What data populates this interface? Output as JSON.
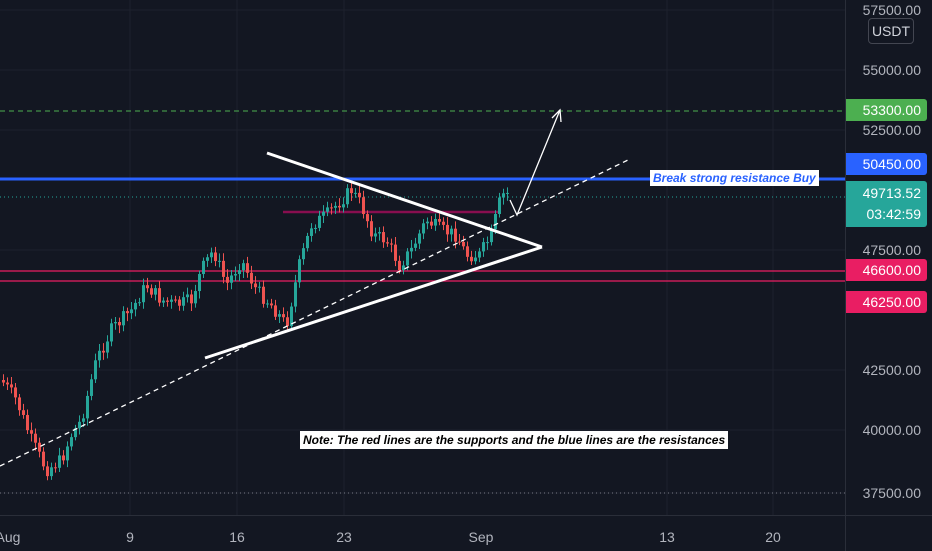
{
  "colors": {
    "background": "#131722",
    "up": "#26a69a",
    "down": "#ef5350",
    "resistance": "#2962ff",
    "support": "#e91e63",
    "target": "#4caf50",
    "current": "#26a69a"
  },
  "axis": {
    "unit_label": "USDT",
    "price_ticks": [
      "57500.00",
      "55000.00",
      "52500.00",
      "47500.00",
      "42500.00",
      "40000.00",
      "37500.00"
    ],
    "time_ticks": [
      "Aug",
      "9",
      "16",
      "23",
      "Sep",
      "13",
      "20"
    ]
  },
  "price_labels": {
    "target": "53300.00",
    "resistance": "50450.00",
    "current": "49713.52",
    "countdown": "03:42:59",
    "support_upper": "46600.00",
    "support_lower": "46250.00"
  },
  "annotations": {
    "break_text": "Break strong resistance Buy",
    "note_text": "Note: The red lines are the supports and the blue lines are the resistances"
  },
  "chart_data": {
    "type": "candlestick",
    "symbol_quote": "USDT",
    "ylim": [
      37500,
      58000
    ],
    "levels": {
      "target": 53300,
      "resistance": 50450,
      "current": 49713.52,
      "support_upper": 46600,
      "support_lower": 46250
    }
  }
}
